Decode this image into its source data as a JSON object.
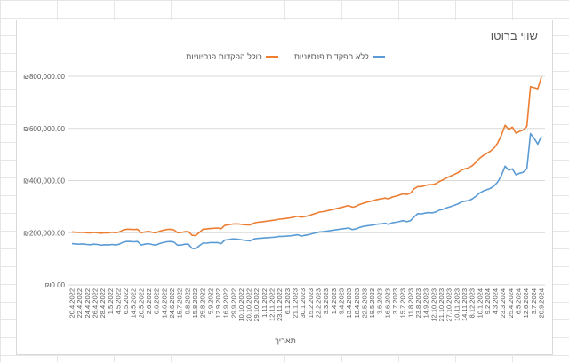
{
  "colors": {
    "series_excl": "#5b9bd5",
    "series_incl": "#ed7d31",
    "gridline": "#d9d9d9",
    "axis_text": "#595959"
  },
  "chart_data": {
    "type": "line",
    "title": "שווי ברוטו",
    "xlabel": "תאריך",
    "ylabel": "",
    "legend_position": "top",
    "grid": true,
    "ylim": [
      0,
      800000
    ],
    "y_ticks": [
      "₪0.00",
      "₪200,000.00",
      "₪400,000.00",
      "₪600,000.00",
      "₪800,000.00"
    ],
    "x_tick_labels": [
      "20.4.2022",
      "22.4.2022",
      "24.4.2022",
      "26.4.2022",
      "28.4.2022",
      "1.5.2022",
      "4.5.2022",
      "6.5.2022",
      "14.5.2022",
      "20.5.2022",
      "2.6.2022",
      "6.6.2022",
      "14.6.2022",
      "24.6.2022",
      "15.7.2022",
      "9.8.2022",
      "15.8.2022",
      "25.8.2022",
      "5.9.2022",
      "12.9.2022",
      "16.9.2022",
      "29.9.2022",
      "10.10.2022",
      "20.10.2022",
      "29.10.2022",
      "1.11.2022",
      "12.11.2022",
      "23.11.2022",
      "6.1.2023",
      "21.1.2023",
      "30.1.2023",
      "15.2.2023",
      "22.2.2023",
      "3.3.2023",
      "1.4.2023",
      "9.4.2023",
      "13.4.2023",
      "18.4.2023",
      "22.5.2023",
      "19.5.2023",
      "3.6.2023",
      "16.6.2023",
      "3.7.2023",
      "15.7.2023",
      "11.8.2023",
      "23.8.2023",
      "14.9.2023",
      "12.10.2023",
      "21.10.2023",
      "27.10.2023",
      "10.11.2023",
      "14.11.2023",
      "8.12.2023",
      "10.1.2024",
      "9.2.2024",
      "4.3.2024",
      "23.3.2024",
      "25.4.2024",
      "6.5.2024",
      "12.6.2024",
      "3.7.2024",
      "20.9.2024"
    ],
    "series": [
      {
        "name": "ללא הפקדות פנסיוניות",
        "values": [
          158000,
          157000,
          156000,
          157000,
          155000,
          154000,
          156000,
          155000,
          152000,
          154000,
          153000,
          155000,
          153000,
          156000,
          163000,
          166000,
          166000,
          165000,
          166000,
          153000,
          156000,
          158000,
          155000,
          152000,
          158000,
          162000,
          165000,
          166000,
          164000,
          152000,
          153000,
          156000,
          156000,
          140000,
          139000,
          150000,
          160000,
          160000,
          162000,
          162000,
          162000,
          158000,
          172000,
          173000,
          176000,
          176000,
          174000,
          172000,
          170000,
          169000,
          176000,
          178000,
          179000,
          180000,
          181000,
          182000,
          183000,
          186000,
          186000,
          187000,
          188000,
          190000,
          192000,
          187000,
          190000,
          192000,
          196000,
          199000,
          203000,
          204000,
          206000,
          208000,
          210000,
          212000,
          214000,
          216000,
          218000,
          212000,
          214000,
          220000,
          224000,
          226000,
          228000,
          230000,
          233000,
          234000,
          236000,
          232000,
          238000,
          240000,
          243000,
          246000,
          242000,
          246000,
          260000,
          273000,
          272000,
          275000,
          277000,
          276000,
          280000,
          287000,
          290000,
          296000,
          300000,
          305000,
          310000,
          318000,
          321000,
          323000,
          330000,
          340000,
          352000,
          360000,
          365000,
          370000,
          380000,
          395000,
          420000,
          455000,
          440000,
          445000,
          422000,
          428000,
          432000,
          445000,
          580000,
          562000,
          540000,
          570000
        ]
      },
      {
        "name": "כולל הפקדות פנסיוניות",
        "values": [
          203000,
          202000,
          201000,
          202000,
          200000,
          199000,
          201000,
          200000,
          198000,
          200000,
          199000,
          202000,
          200000,
          203000,
          210000,
          213000,
          213000,
          212000,
          213000,
          200000,
          203000,
          205000,
          202000,
          199000,
          205000,
          209000,
          212000,
          213000,
          211000,
          200000,
          201000,
          204000,
          204000,
          190000,
          189000,
          201000,
          213000,
          214000,
          216000,
          217000,
          218000,
          215000,
          228000,
          230000,
          233000,
          234000,
          233000,
          231000,
          230000,
          230000,
          237000,
          240000,
          241000,
          243000,
          245000,
          247000,
          249000,
          252000,
          253000,
          255000,
          257000,
          260000,
          263000,
          259000,
          262000,
          265000,
          270000,
          274000,
          279000,
          281000,
          284000,
          287000,
          290000,
          294000,
          297000,
          301000,
          304000,
          298000,
          301000,
          308000,
          313000,
          317000,
          320000,
          324000,
          328000,
          330000,
          333000,
          330000,
          337000,
          340000,
          345000,
          349000,
          347000,
          352000,
          368000,
          377000,
          377000,
          381000,
          384000,
          384000,
          388000,
          397000,
          403000,
          411000,
          417000,
          423000,
          430000,
          440000,
          445000,
          449000,
          457000,
          470000,
          485000,
          496000,
          504000,
          513000,
          525000,
          545000,
          575000,
          612000,
          596000,
          605000,
          582000,
          589000,
          594000,
          608000,
          760000,
          756000,
          752000,
          798000
        ]
      }
    ]
  }
}
